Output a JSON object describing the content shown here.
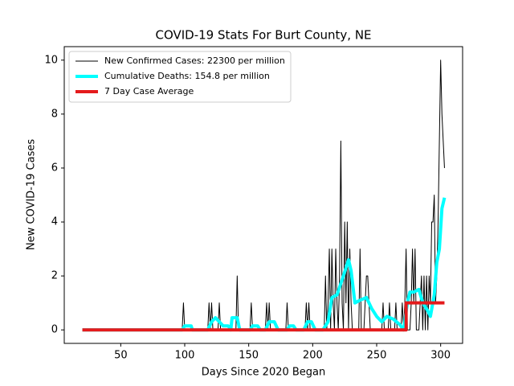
{
  "chart_data": {
    "type": "line",
    "title": "COVID-19 Stats For Burt County, NE",
    "x_label": "Days Since 2020 Began",
    "y_label": "New COVID-19 Cases",
    "xlim": [
      5.85,
      317.15
    ],
    "ylim": [
      -0.5,
      10.5
    ],
    "xticks": [
      50,
      100,
      150,
      200,
      250,
      300
    ],
    "yticks": [
      0,
      2,
      4,
      6,
      8,
      10
    ],
    "legend": "upper left",
    "series": [
      {
        "name": "New Confirmed Cases: 22300 per million",
        "color": "#000000",
        "width": 1,
        "x": [
          20,
          98,
          99,
          100,
          118,
          119,
          120,
          121,
          122,
          126,
          127,
          128,
          140,
          141,
          142,
          151,
          152,
          153,
          163,
          164,
          165,
          166,
          167,
          179,
          180,
          181,
          194,
          195,
          196,
          197,
          198,
          209,
          210,
          211,
          212,
          213,
          214,
          215,
          216,
          217,
          218,
          219,
          220,
          221,
          222,
          223,
          224,
          225,
          226,
          227,
          228,
          229,
          230,
          231,
          236,
          237,
          238,
          240,
          241,
          242,
          243,
          244,
          245,
          254,
          255,
          256,
          259,
          260,
          261,
          264,
          265,
          266,
          269,
          270,
          271,
          272,
          273,
          274,
          276,
          277,
          278,
          279,
          280,
          281,
          283,
          284,
          285,
          286,
          287,
          288,
          289,
          290,
          291,
          292,
          293,
          294,
          295,
          296,
          297,
          298,
          299,
          300,
          301,
          302,
          303
        ],
        "values": [
          0,
          0,
          1,
          0,
          0,
          1,
          0,
          1,
          0,
          0,
          1,
          0,
          0,
          2,
          0,
          0,
          1,
          0,
          0,
          1,
          0,
          1,
          0,
          0,
          1,
          0,
          0,
          1,
          0,
          1,
          0,
          0,
          2,
          0,
          1,
          3,
          0,
          3,
          1,
          0,
          3,
          1,
          0,
          2,
          7,
          1,
          0,
          4,
          1,
          4,
          0,
          3,
          1,
          0,
          0,
          3,
          0,
          0,
          1,
          2,
          2,
          1,
          0,
          0,
          1,
          0,
          0,
          1,
          0,
          0,
          1,
          0,
          0,
          1,
          0,
          1,
          3,
          0,
          0,
          1,
          3,
          1,
          3,
          0,
          0,
          1,
          2,
          0,
          2,
          0,
          2,
          0,
          2,
          1,
          4,
          4,
          5,
          1,
          2,
          4,
          7,
          10,
          8,
          7,
          6
        ]
      },
      {
        "name": "Cumulative Deaths: 154.8 per million",
        "color": "#00ffff",
        "width": 4,
        "x": [
          20,
          98,
          100,
          105,
          106,
          118,
          121,
          124,
          127,
          130,
          134,
          136,
          137,
          141,
          143,
          151,
          153,
          157,
          159,
          163,
          166,
          170,
          173,
          180,
          182,
          185,
          187,
          193,
          196,
          199,
          202,
          208,
          212,
          215,
          219,
          224,
          228,
          230,
          233,
          237,
          242,
          246,
          250,
          254,
          258,
          263,
          268,
          271,
          274,
          276,
          279,
          283,
          286,
          290,
          292,
          295,
          297,
          299,
          301,
          303
        ],
        "values": [
          0,
          0,
          0.15,
          0.15,
          0,
          0,
          0.3,
          0.45,
          0.3,
          0.15,
          0.15,
          0,
          0.45,
          0.45,
          0,
          0,
          0.15,
          0.15,
          0,
          0,
          0.3,
          0.3,
          0,
          0,
          0.15,
          0.15,
          0,
          0,
          0.3,
          0.3,
          0,
          0,
          0.3,
          1.2,
          1.3,
          2.0,
          2.6,
          2.2,
          1.0,
          1.1,
          1.2,
          0.8,
          0.5,
          0.3,
          0.5,
          0.4,
          0.2,
          0,
          1.0,
          1.4,
          1.4,
          1.5,
          1.0,
          0.7,
          0.5,
          1.3,
          2.5,
          3,
          4.5,
          4.9
        ]
      },
      {
        "name": "7 Day Case Average",
        "color": "#e41a1c",
        "width": 4,
        "x": [
          20,
          273,
          273,
          303
        ],
        "values": [
          0,
          0,
          1,
          1
        ]
      }
    ]
  }
}
